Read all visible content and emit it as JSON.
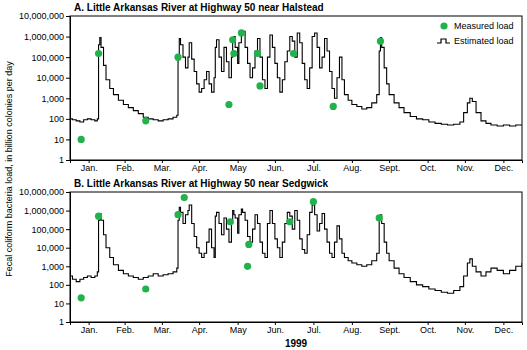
{
  "chart_data": [
    {
      "type": "line",
      "title": "A. Little Arkansas River at Highway 50 near Halstead",
      "ylabel": "Fecal coliform bacteria load, in billion colonies per day",
      "log": "y",
      "legend": "upper right",
      "xlim": [
        1,
        365
      ],
      "xticks": [
        {
          "value": 16,
          "label": "Jan."
        },
        {
          "value": 45,
          "label": "Feb."
        },
        {
          "value": 75,
          "label": "Mar."
        },
        {
          "value": 105,
          "label": "Apr."
        },
        {
          "value": 136,
          "label": "May"
        },
        {
          "value": 166,
          "label": "Jun."
        },
        {
          "value": 197,
          "label": "Jul."
        },
        {
          "value": 228,
          "label": "Aug."
        },
        {
          "value": 258,
          "label": "Sept."
        },
        {
          "value": 289,
          "label": "Oct."
        },
        {
          "value": 319,
          "label": "Nov."
        },
        {
          "value": 350,
          "label": "Dec."
        }
      ],
      "ylim": [
        1,
        10000000
      ],
      "yticks": [
        1,
        10,
        100,
        {
          "value": 1000,
          "label": "1,000"
        },
        {
          "value": 10000,
          "label": "10,000"
        },
        {
          "value": 100000,
          "label": "100,000"
        },
        {
          "value": 1000000,
          "label": "1,000,000"
        },
        {
          "value": 10000000,
          "label": "10,000,000"
        }
      ],
      "series": [
        {
          "name": "Measured load",
          "type": "scatter",
          "marker": "circle",
          "color": "#22b24c",
          "x": [
            10,
            24,
            62,
            88,
            129,
            132,
            133,
            139,
            152,
            154,
            181,
            213,
            251
          ],
          "values": [
            10,
            150000,
            80,
            100000,
            500,
            700000,
            150000,
            1500000,
            150000,
            4000,
            150000,
            400,
            600000
          ]
        },
        {
          "name": "Estimated load",
          "type": "line",
          "line_style": "solid",
          "color": "#000000",
          "x": [
            1,
            3,
            6,
            9,
            12,
            15,
            18,
            21,
            23,
            24,
            25,
            26,
            28,
            30,
            33,
            36,
            40,
            44,
            48,
            52,
            56,
            60,
            64,
            68,
            72,
            76,
            80,
            84,
            87,
            88,
            89,
            90,
            92,
            94,
            96,
            97,
            99,
            101,
            103,
            105,
            107,
            109,
            111,
            113,
            115,
            117,
            118,
            119,
            121,
            123,
            125,
            127,
            129,
            131,
            132,
            133,
            134,
            136,
            137,
            139,
            140,
            142,
            144,
            146,
            148,
            150,
            152,
            154,
            156,
            158,
            160,
            162,
            164,
            166,
            168,
            170,
            172,
            174,
            176,
            178,
            180,
            182,
            184,
            186,
            188,
            190,
            192,
            194,
            196,
            198,
            200,
            202,
            204,
            206,
            208,
            210,
            212,
            214,
            216,
            218,
            220,
            222,
            225,
            228,
            232,
            236,
            240,
            244,
            248,
            250,
            251,
            252,
            254,
            256,
            258,
            262,
            266,
            270,
            275,
            280,
            285,
            290,
            295,
            300,
            305,
            310,
            315,
            318,
            321,
            323,
            325,
            328,
            332,
            336,
            340,
            345,
            350,
            355,
            360,
            365
          ],
          "values": [
            100,
            90,
            80,
            70,
            90,
            100,
            90,
            80,
            100,
            400000,
            900000,
            300000,
            40000,
            8000,
            3000,
            1500,
            800,
            500,
            350,
            250,
            180,
            120,
            100,
            90,
            80,
            90,
            100,
            120,
            150,
            100000,
            800000,
            400000,
            100000,
            30000,
            100000,
            500000,
            80000,
            20000,
            5000,
            2000,
            3000,
            8000,
            20000,
            5000,
            2000,
            10000,
            300000,
            700000,
            100000,
            20000,
            300000,
            60000,
            10000,
            100000,
            800000,
            1000000,
            300000,
            50000,
            500000,
            1500000,
            1800000,
            300000,
            50000,
            10000,
            30000,
            200000,
            800000,
            100000,
            8000,
            3000,
            100000,
            1200000,
            300000,
            50000,
            10000,
            2000,
            8000,
            60000,
            200000,
            1000000,
            600000,
            100000,
            1500000,
            500000,
            50000,
            8000,
            3000,
            30000,
            1000000,
            1500000,
            300000,
            30000,
            100000,
            800000,
            200000,
            20000,
            3000,
            1000,
            10000,
            100000,
            8000,
            1500,
            800,
            500,
            400,
            300,
            350,
            600,
            1500,
            200000,
            900000,
            300000,
            30000,
            5000,
            1500,
            600,
            350,
            200,
            130,
            100,
            90,
            70,
            60,
            55,
            50,
            55,
            70,
            200,
            600,
            1000,
            700,
            200,
            80,
            60,
            50,
            45,
            50,
            45,
            50,
            50
          ]
        }
      ]
    },
    {
      "type": "line",
      "title": "B. Little Arkansas River at Highway 50 near Sedgwick",
      "xlabel": "1999",
      "log": "y",
      "xlim": [
        1,
        365
      ],
      "xticks": [
        {
          "value": 16,
          "label": "Jan."
        },
        {
          "value": 45,
          "label": "Feb."
        },
        {
          "value": 75,
          "label": "Mar."
        },
        {
          "value": 105,
          "label": "Apr."
        },
        {
          "value": 136,
          "label": "May"
        },
        {
          "value": 166,
          "label": "Jun."
        },
        {
          "value": 197,
          "label": "Jul."
        },
        {
          "value": 228,
          "label": "Aug."
        },
        {
          "value": 258,
          "label": "Sept."
        },
        {
          "value": 289,
          "label": "Oct."
        },
        {
          "value": 319,
          "label": "Nov."
        },
        {
          "value": 350,
          "label": "Dec."
        }
      ],
      "ylim": [
        1,
        10000000
      ],
      "yticks": [
        1,
        10,
        100,
        {
          "value": 1000,
          "label": "1,000"
        },
        {
          "value": 10000,
          "label": "10,000"
        },
        {
          "value": 100000,
          "label": "100,000"
        },
        {
          "value": 1000000,
          "label": "1,000,000"
        },
        {
          "value": 10000000,
          "label": "10,000,000"
        }
      ],
      "series": [
        {
          "name": "Measured load",
          "type": "scatter",
          "marker": "circle",
          "color": "#22b24c",
          "x": [
            10,
            24,
            62,
            88,
            93,
            130,
            144,
            145,
            178,
            197,
            250
          ],
          "values": [
            20,
            500000,
            60,
            600000,
            5000000,
            250000,
            1000,
            15000,
            250000,
            3000000,
            400000
          ]
        },
        {
          "name": "Estimated load",
          "type": "line",
          "line_style": "solid",
          "color": "#000000",
          "x": [
            1,
            3,
            6,
            9,
            12,
            15,
            18,
            21,
            23,
            24,
            25,
            26,
            28,
            30,
            33,
            36,
            40,
            44,
            48,
            52,
            56,
            60,
            64,
            68,
            72,
            76,
            80,
            84,
            87,
            88,
            89,
            90,
            92,
            94,
            96,
            97,
            99,
            101,
            103,
            105,
            107,
            109,
            111,
            113,
            115,
            117,
            118,
            119,
            121,
            123,
            125,
            127,
            129,
            131,
            132,
            133,
            134,
            136,
            137,
            139,
            140,
            142,
            144,
            146,
            148,
            150,
            152,
            154,
            156,
            158,
            160,
            162,
            164,
            166,
            168,
            170,
            172,
            174,
            176,
            178,
            180,
            182,
            184,
            186,
            188,
            190,
            192,
            194,
            196,
            198,
            200,
            202,
            204,
            206,
            208,
            210,
            212,
            214,
            216,
            218,
            220,
            222,
            225,
            228,
            232,
            236,
            240,
            244,
            248,
            250,
            251,
            252,
            254,
            256,
            258,
            262,
            266,
            270,
            275,
            280,
            285,
            290,
            295,
            300,
            305,
            310,
            315,
            318,
            321,
            323,
            325,
            328,
            332,
            336,
            340,
            345,
            350,
            355,
            360,
            365
          ],
          "values": [
            300,
            200,
            150,
            200,
            250,
            300,
            250,
            300,
            500,
            300000,
            700000,
            300000,
            50000,
            10000,
            3000,
            1200,
            600,
            400,
            300,
            250,
            200,
            250,
            300,
            400,
            300,
            350,
            400,
            500,
            800,
            300000,
            1500000,
            800000,
            200000,
            600000,
            1000000,
            2000000,
            200000,
            40000,
            10000,
            5000,
            3000,
            5000,
            20000,
            100000,
            10000,
            3000,
            500000,
            800000,
            200000,
            50000,
            400000,
            100000,
            20000,
            200000,
            1000000,
            600000,
            400000,
            60000,
            600000,
            1200000,
            800000,
            300000,
            40000,
            20000,
            100000,
            600000,
            200000,
            20000,
            5000,
            3000,
            200000,
            1000000,
            200000,
            30000,
            10000,
            3000,
            20000,
            200000,
            800000,
            500000,
            100000,
            1000000,
            300000,
            30000,
            8000,
            5000,
            50000,
            800000,
            2000000,
            600000,
            80000,
            200000,
            700000,
            100000,
            20000,
            5000,
            3000,
            20000,
            150000,
            30000,
            5000,
            3000,
            2000,
            1500,
            1200,
            1000,
            1200,
            2000,
            5000,
            300000,
            600000,
            200000,
            20000,
            5000,
            2000,
            800,
            400,
            250,
            150,
            100,
            80,
            60,
            50,
            40,
            35,
            50,
            80,
            300,
            1500,
            2500,
            1000,
            500,
            300,
            500,
            800,
            600,
            400,
            600,
            1000,
            1500
          ]
        }
      ]
    }
  ]
}
